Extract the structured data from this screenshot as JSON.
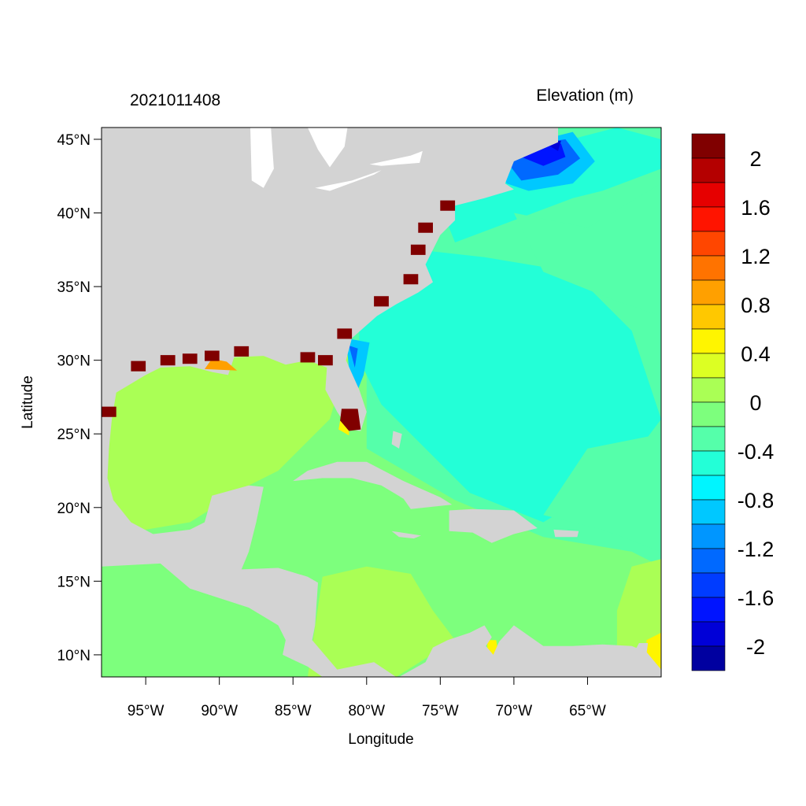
{
  "title_left": "2021011408",
  "title_right": "Elevation (m)",
  "xlabel": "Longitude",
  "ylabel": "Latitude",
  "lon_ticks": [
    {
      "value": -95,
      "label": "95°W"
    },
    {
      "value": -90,
      "label": "90°W"
    },
    {
      "value": -85,
      "label": "85°W"
    },
    {
      "value": -80,
      "label": "80°W"
    },
    {
      "value": -75,
      "label": "75°W"
    },
    {
      "value": -70,
      "label": "70°W"
    },
    {
      "value": -65,
      "label": "65°W"
    }
  ],
  "lat_ticks": [
    {
      "value": 45,
      "label": "45°N"
    },
    {
      "value": 40,
      "label": "40°N"
    },
    {
      "value": 35,
      "label": "35°N"
    },
    {
      "value": 30,
      "label": "30°N"
    },
    {
      "value": 25,
      "label": "25°N"
    },
    {
      "value": 20,
      "label": "20°N"
    },
    {
      "value": 15,
      "label": "15°N"
    },
    {
      "value": 10,
      "label": "10°N"
    }
  ],
  "lon_range": [
    -98,
    -60
  ],
  "lat_range": [
    8.5,
    45.8
  ],
  "land_color": "#D3D3D3",
  "colorbar": {
    "range": [
      -2.2,
      2.2
    ],
    "step": 0.2,
    "colors_top_to_bottom": [
      "#800000",
      "#B40000",
      "#E60000",
      "#FF1400",
      "#FF4600",
      "#FF7300",
      "#FFA000",
      "#FFC800",
      "#FFF500",
      "#DCFF23",
      "#AAFF55",
      "#7DFF7D",
      "#55FFAA",
      "#23FFD7",
      "#00F5FF",
      "#00C8FF",
      "#0096FF",
      "#0069FF",
      "#003CFF",
      "#0014FF",
      "#0000D7",
      "#0000A0"
    ],
    "labels": [
      {
        "value": 2,
        "label": "2"
      },
      {
        "value": 1.6,
        "label": "1.6"
      },
      {
        "value": 1.2,
        "label": "1.2"
      },
      {
        "value": 0.8,
        "label": "0.8"
      },
      {
        "value": 0.4,
        "label": "0.4"
      },
      {
        "value": 0,
        "label": "0"
      },
      {
        "value": -0.4,
        "label": "-0.4"
      },
      {
        "value": -0.8,
        "label": "-0.8"
      },
      {
        "value": -1.2,
        "label": "-1.2"
      },
      {
        "value": -1.6,
        "label": "-1.6"
      },
      {
        "value": -2,
        "label": "-2"
      }
    ]
  }
}
